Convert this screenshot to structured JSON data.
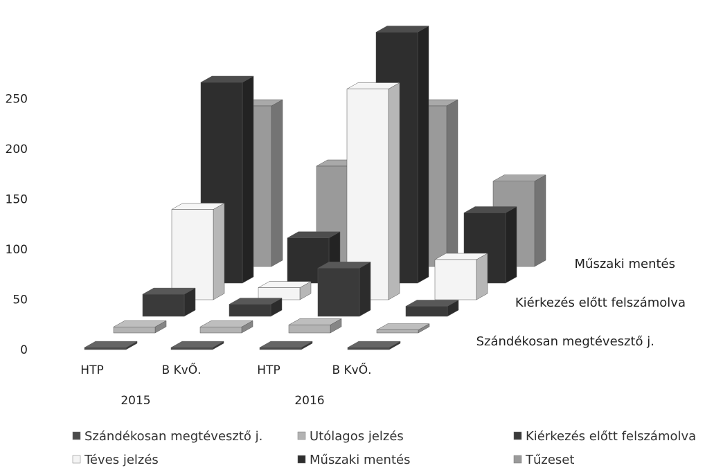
{
  "chart_data": {
    "type": "bar",
    "style": "3d-column",
    "title": "",
    "group_labels": [
      "2015",
      "2016"
    ],
    "categories": [
      "HTP",
      "B KvŐ.",
      "HTP",
      "B KvŐ."
    ],
    "yticks": [
      "0",
      "50",
      "100",
      "150",
      "200",
      "250"
    ],
    "ylim": [
      0,
      300
    ],
    "depth_axis_labels": [
      "Műszaki mentés",
      "Kiérkezés előtt felszámolva",
      "Szándékosan megtévesztő j."
    ],
    "legend_position": "bottom",
    "series": [
      {
        "name": "Szándékosan megtévesztő j.",
        "values": [
          2,
          2,
          2,
          2
        ],
        "color": "#4a4a4a"
      },
      {
        "name": "Utólagos jelzés",
        "values": [
          6,
          6,
          8,
          3
        ],
        "color": "#b3b3b3"
      },
      {
        "name": "Kiérkezés előtt felszámolva",
        "values": [
          22,
          12,
          48,
          10
        ],
        "color": "#3a3a3a"
      },
      {
        "name": "Téves jelzés",
        "values": [
          90,
          12,
          210,
          40
        ],
        "color": "#f4f4f4"
      },
      {
        "name": "Műszaki mentés",
        "values": [
          200,
          45,
          250,
          70
        ],
        "color": "#2e2e2e"
      },
      {
        "name": "Tűzeset",
        "values": [
          160,
          100,
          160,
          85
        ],
        "color": "#9a9a9a"
      }
    ]
  }
}
